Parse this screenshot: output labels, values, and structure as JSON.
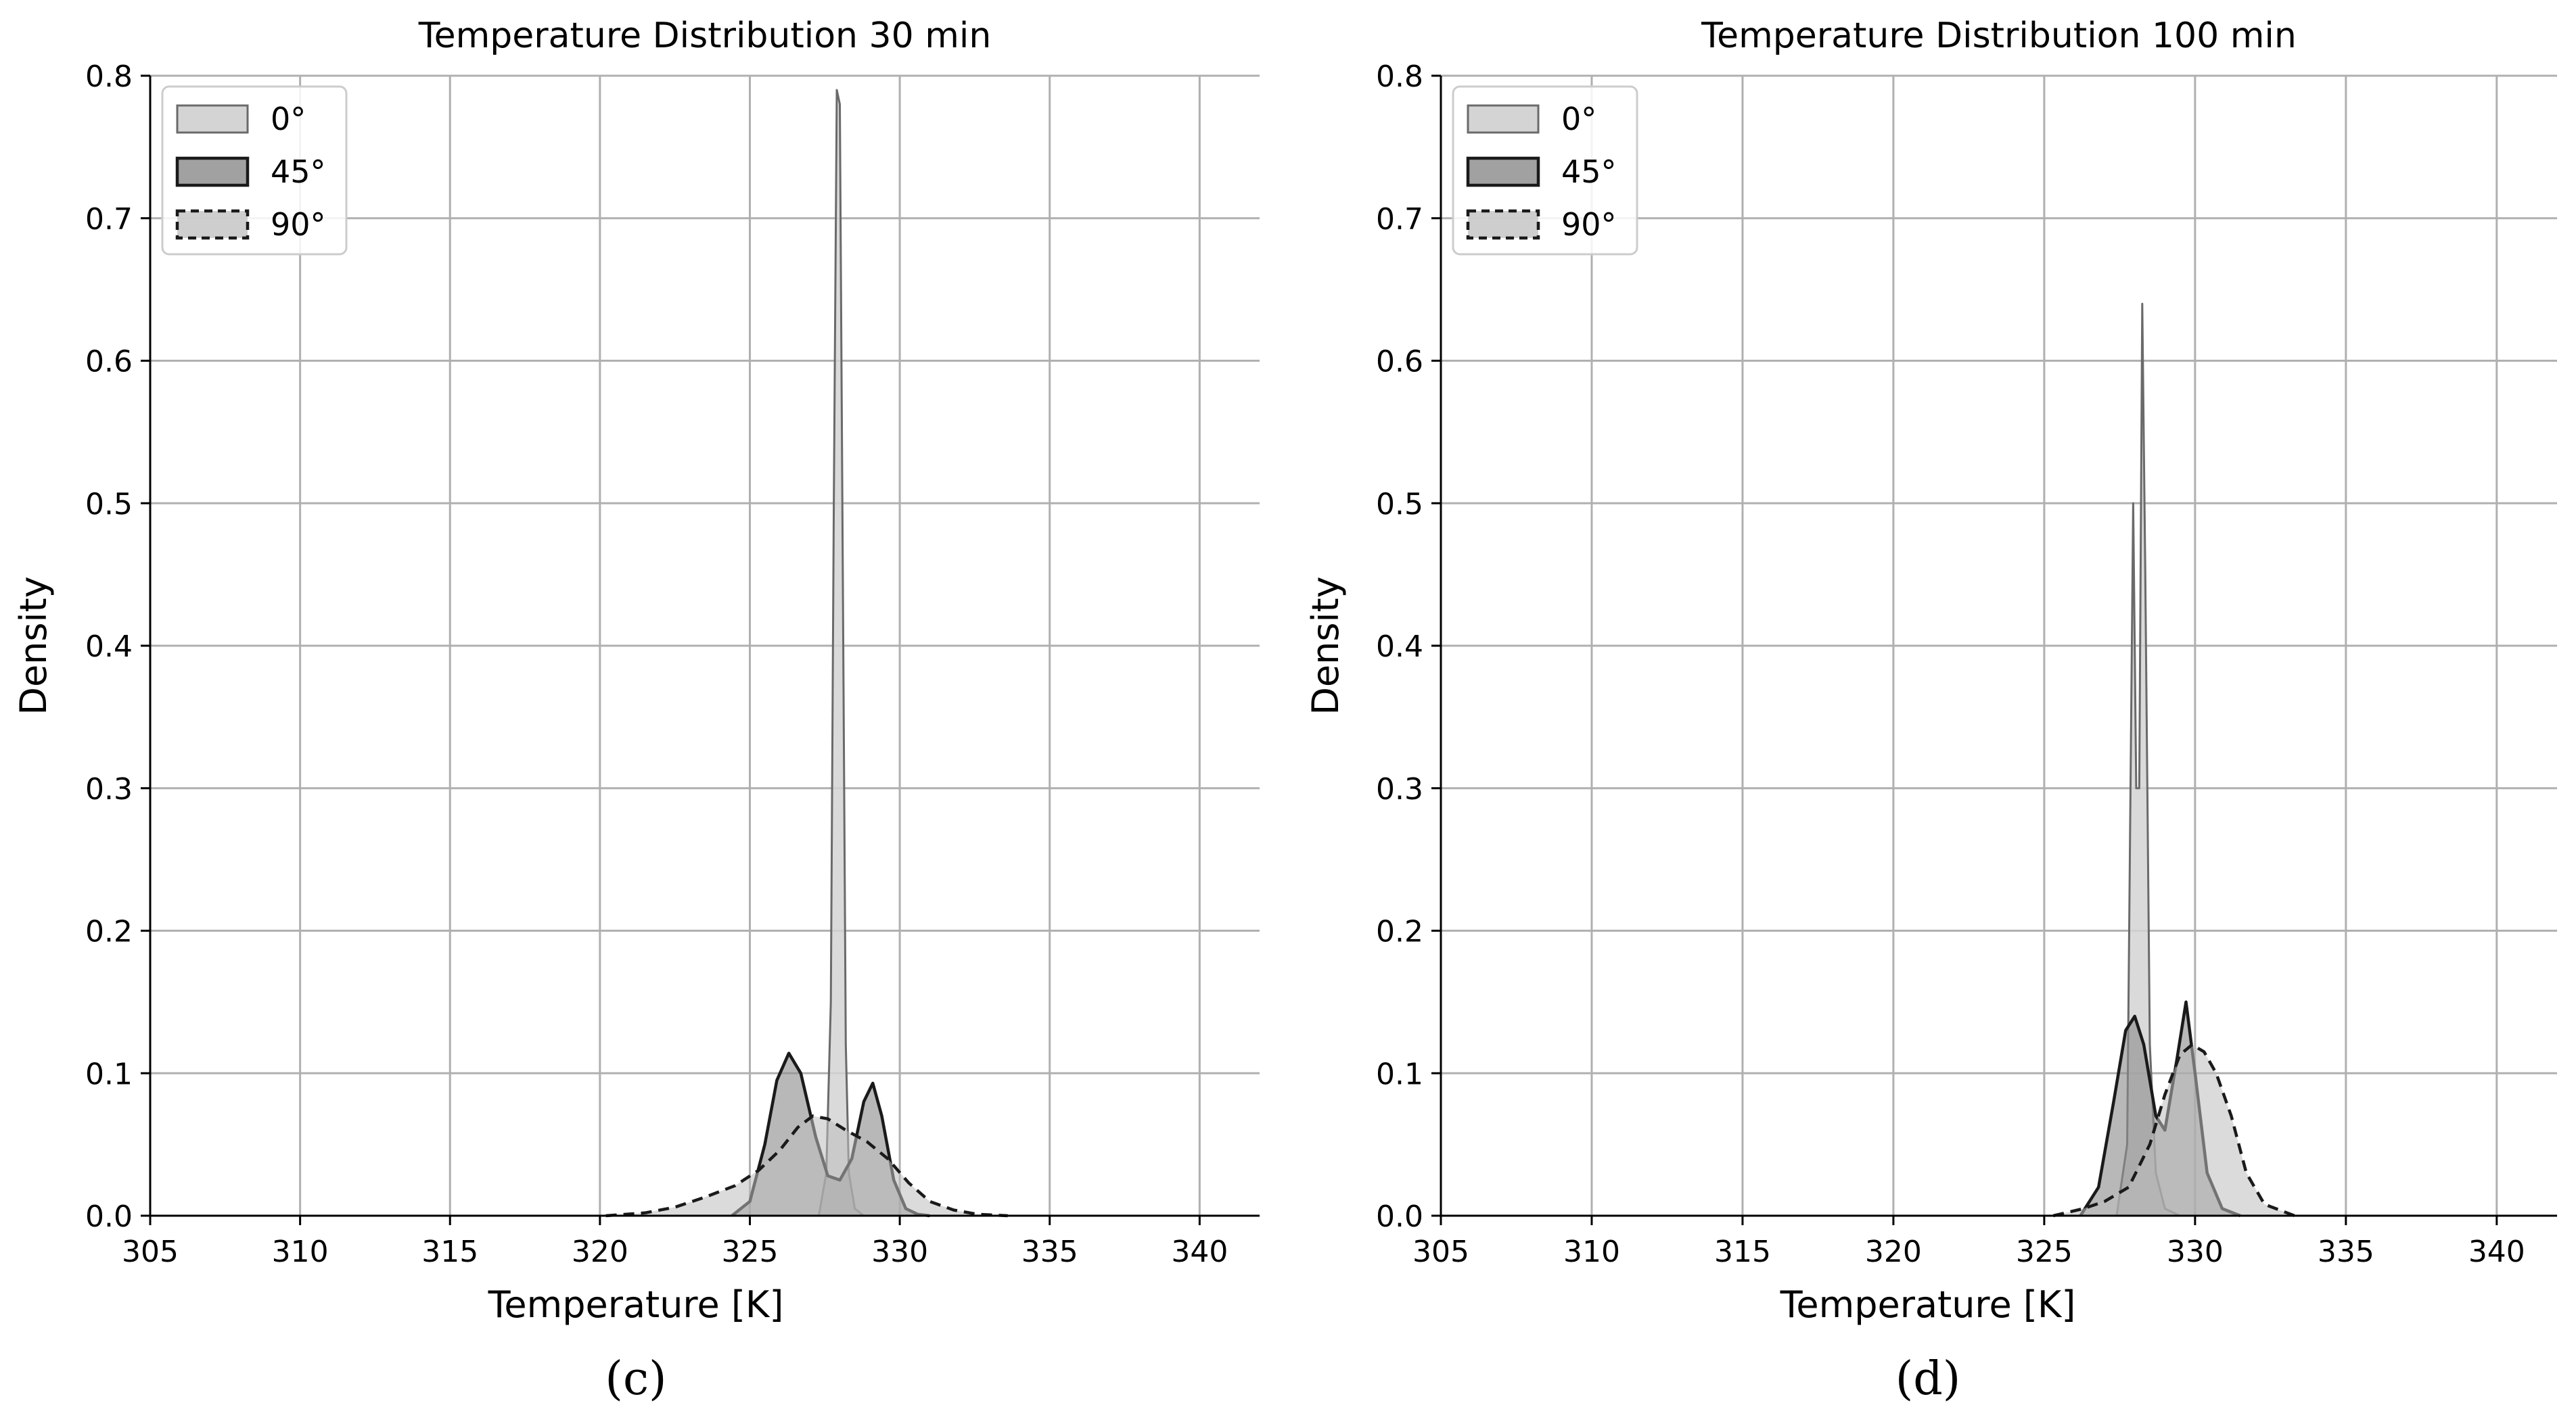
{
  "chart_data": [
    {
      "type": "area",
      "title": "Temperature Distribution 30 min",
      "panel_label": "(c)",
      "xlabel": "Temperature [K]",
      "ylabel": "Density",
      "xlim": [
        305,
        342
      ],
      "ylim": [
        0,
        0.8
      ],
      "x_ticks": [
        305,
        310,
        315,
        320,
        325,
        330,
        335,
        340
      ],
      "y_ticks": [
        0.0,
        0.1,
        0.2,
        0.3,
        0.4,
        0.5,
        0.6,
        0.7,
        0.8
      ],
      "grid": true,
      "legend_position": "top-left",
      "series": [
        {
          "name": "0°",
          "x": [
            327.3,
            327.55,
            327.7,
            327.8,
            327.9,
            328.0,
            328.1,
            328.2,
            328.3,
            328.5,
            328.8
          ],
          "y": [
            0.0,
            0.03,
            0.15,
            0.5,
            0.79,
            0.78,
            0.45,
            0.12,
            0.03,
            0.005,
            0.0
          ]
        },
        {
          "name": "45°",
          "x": [
            324.4,
            325.0,
            325.5,
            325.9,
            326.3,
            326.7,
            327.2,
            327.6,
            328.0,
            328.4,
            328.8,
            329.1,
            329.4,
            329.8,
            330.2,
            330.6,
            331.0
          ],
          "y": [
            0.0,
            0.01,
            0.05,
            0.095,
            0.114,
            0.1,
            0.055,
            0.028,
            0.025,
            0.04,
            0.08,
            0.093,
            0.07,
            0.025,
            0.005,
            0.001,
            0.0
          ]
        },
        {
          "name": "90°",
          "x": [
            320.2,
            321.5,
            322.5,
            323.5,
            324.5,
            325.3,
            326.0,
            326.6,
            327.1,
            327.6,
            328.2,
            328.9,
            329.6,
            330.3,
            331.0,
            331.8,
            332.6,
            333.6
          ],
          "y": [
            0.0,
            0.002,
            0.006,
            0.013,
            0.021,
            0.032,
            0.046,
            0.062,
            0.07,
            0.068,
            0.06,
            0.052,
            0.04,
            0.023,
            0.01,
            0.004,
            0.001,
            0.0
          ]
        }
      ]
    },
    {
      "type": "area",
      "title": "Temperature Distribution 100 min",
      "panel_label": "(d)",
      "xlabel": "Temperature [K]",
      "ylabel": "Density",
      "xlim": [
        305,
        342
      ],
      "ylim": [
        0,
        0.8
      ],
      "x_ticks": [
        305,
        310,
        315,
        320,
        325,
        330,
        335,
        340
      ],
      "y_ticks": [
        0.0,
        0.1,
        0.2,
        0.3,
        0.4,
        0.5,
        0.6,
        0.7,
        0.8
      ],
      "grid": true,
      "legend_position": "top-left",
      "series": [
        {
          "name": "0°",
          "x": [
            327.4,
            327.75,
            327.95,
            328.05,
            328.15,
            328.25,
            328.35,
            328.5,
            328.7,
            329.0,
            329.5
          ],
          "y": [
            0.0,
            0.05,
            0.5,
            0.3,
            0.3,
            0.64,
            0.45,
            0.12,
            0.03,
            0.005,
            0.0
          ]
        },
        {
          "name": "45°",
          "x": [
            326.2,
            326.8,
            327.3,
            327.7,
            328.0,
            328.3,
            328.7,
            329.0,
            329.4,
            329.7,
            330.0,
            330.4,
            330.9,
            331.5
          ],
          "y": [
            0.0,
            0.02,
            0.08,
            0.13,
            0.14,
            0.12,
            0.07,
            0.06,
            0.11,
            0.15,
            0.1,
            0.03,
            0.005,
            0.0
          ]
        },
        {
          "name": "90°",
          "x": [
            325.3,
            326.3,
            327.0,
            327.8,
            328.5,
            329.0,
            329.5,
            329.9,
            330.3,
            330.7,
            331.2,
            331.7,
            332.3,
            333.3
          ],
          "y": [
            0.0,
            0.005,
            0.01,
            0.02,
            0.05,
            0.085,
            0.113,
            0.12,
            0.115,
            0.1,
            0.07,
            0.03,
            0.008,
            0.0
          ]
        }
      ]
    }
  ]
}
